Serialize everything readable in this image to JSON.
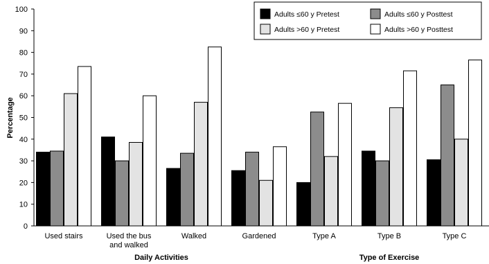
{
  "chart_data": {
    "type": "bar",
    "ylabel": "Percentage",
    "ylim": [
      0,
      100
    ],
    "yticks": [
      0,
      10,
      20,
      30,
      40,
      50,
      60,
      70,
      80,
      90,
      100
    ],
    "grid": false,
    "legend_position": "top-right",
    "categories": [
      "Used stairs",
      "Used the bus and walked",
      "Walked",
      "Gardened",
      "Type A",
      "Type B",
      "Type C"
    ],
    "category_label_lines": [
      [
        "Used stairs"
      ],
      [
        "Used the bus",
        "and walked"
      ],
      [
        "Walked"
      ],
      [
        "Gardened"
      ],
      [
        "Type A"
      ],
      [
        "Type B"
      ],
      [
        "Type C"
      ]
    ],
    "groups": [
      {
        "label": "Daily Activities",
        "categories": [
          "Used stairs",
          "Used the bus and walked",
          "Walked",
          "Gardened"
        ]
      },
      {
        "label": "Type of Exercise",
        "categories": [
          "Type A",
          "Type B",
          "Type C"
        ]
      }
    ],
    "series": [
      {
        "name": "Adults ≤60 y Pretest",
        "color": "#000000",
        "values": [
          34,
          41,
          26.5,
          25.5,
          20,
          34.5,
          30.5
        ]
      },
      {
        "name": "Adults ≤60 y Posttest",
        "color": "#8c8c8c",
        "values": [
          34.5,
          30,
          33.5,
          34,
          52.5,
          30,
          65
        ]
      },
      {
        "name": "Adults >60 y Pretest",
        "color": "#e3e3e3",
        "values": [
          61,
          38.5,
          57,
          21,
          32,
          54.5,
          40
        ]
      },
      {
        "name": "Adults >60 y Posttest",
        "color": "#ffffff",
        "values": [
          73.5,
          60,
          82.5,
          36.5,
          56.5,
          71.5,
          76.5
        ]
      }
    ]
  }
}
